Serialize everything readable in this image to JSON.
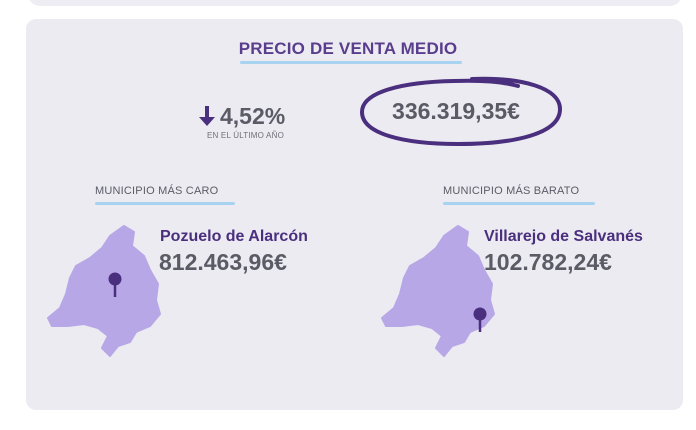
{
  "header": {
    "title": "PRECIO DE VENTA MEDIO"
  },
  "change": {
    "value": "4,52%",
    "caption": "EN EL ÚLTIMO AÑO",
    "direction_icon": "arrow-down-icon"
  },
  "average_price": "336.319,35€",
  "most_expensive": {
    "label": "MUNICIPIO MÁS CARO",
    "municipality": "Pozuelo de Alarcón",
    "price": "812.463,96€",
    "map_icon": "madrid-map-icon",
    "pin_icon": "location-pin-icon"
  },
  "cheapest": {
    "label": "MUNICIPIO MÁS BARATO",
    "municipality": "Villarejo de Salvanés",
    "price": "102.782,24€",
    "map_icon": "madrid-map-icon",
    "pin_icon": "location-pin-icon"
  },
  "colors": {
    "title": "#5a3e8e",
    "accent_purple": "#4a2f7e",
    "map_fill": "#b7a7e6",
    "underline": "#a7d3f1",
    "card_background": "#ecebf1",
    "value_text": "#5b5b66"
  }
}
